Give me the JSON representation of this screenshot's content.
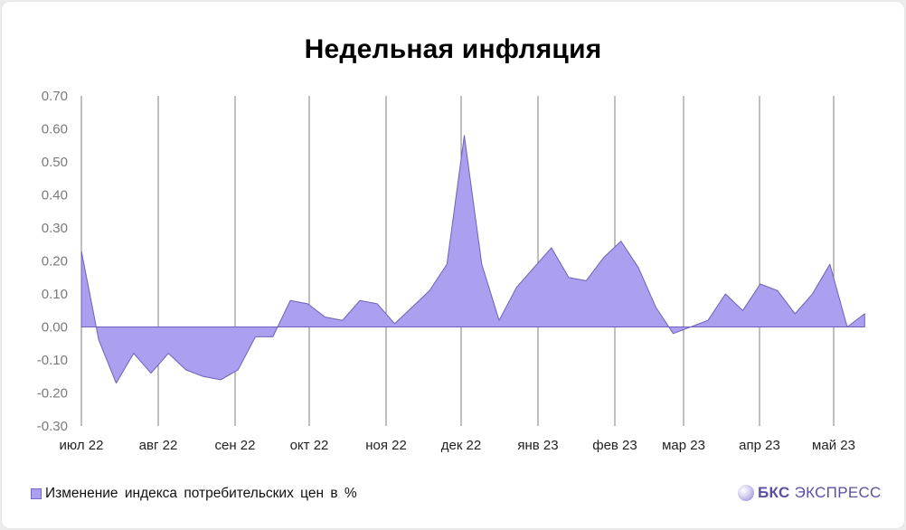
{
  "title": "Недельная инфляция",
  "legend": {
    "label": "Изменение индекса потребительских цен в %",
    "color": "#ab9ff0"
  },
  "logo": {
    "bold": "БКС",
    "light": "ЭКСПРЕСС"
  },
  "colors": {
    "fill": "#ab9ff0",
    "stroke": "#6e62b8",
    "grid": "#7f7f7f",
    "axis_text": "#7a7a7a"
  },
  "chart_data": {
    "type": "area",
    "title": "Недельная инфляция",
    "xlabel": "",
    "ylabel": "",
    "ylim": [
      -0.3,
      0.7
    ],
    "yticks": [
      "0.70",
      "0.60",
      "0.50",
      "0.40",
      "0.30",
      "0.20",
      "0.10",
      "0.00",
      "-0.10",
      "-0.20",
      "-0.30"
    ],
    "xticks": [
      "июл 22",
      "авг 22",
      "сен 22",
      "окт 22",
      "ноя 22",
      "дек 22",
      "янв 23",
      "фев 23",
      "мар 23",
      "апр 23",
      "май 23"
    ],
    "grid": "vertical lines at month starts",
    "legend_position": "bottom-left",
    "series": [
      {
        "name": "Изменение индекса потребительских цен в %",
        "values": [
          0.23,
          -0.04,
          -0.17,
          -0.08,
          -0.14,
          -0.08,
          -0.13,
          -0.15,
          -0.16,
          -0.13,
          -0.03,
          -0.03,
          0.08,
          0.07,
          0.03,
          0.02,
          0.08,
          0.07,
          0.01,
          0.06,
          0.11,
          0.19,
          0.58,
          0.19,
          0.02,
          0.12,
          0.18,
          0.24,
          0.15,
          0.14,
          0.21,
          0.26,
          0.18,
          0.06,
          -0.02,
          0.0,
          0.02,
          0.1,
          0.05,
          0.13,
          0.11,
          0.04,
          0.1,
          0.19,
          0.0,
          0.04
        ]
      }
    ]
  }
}
